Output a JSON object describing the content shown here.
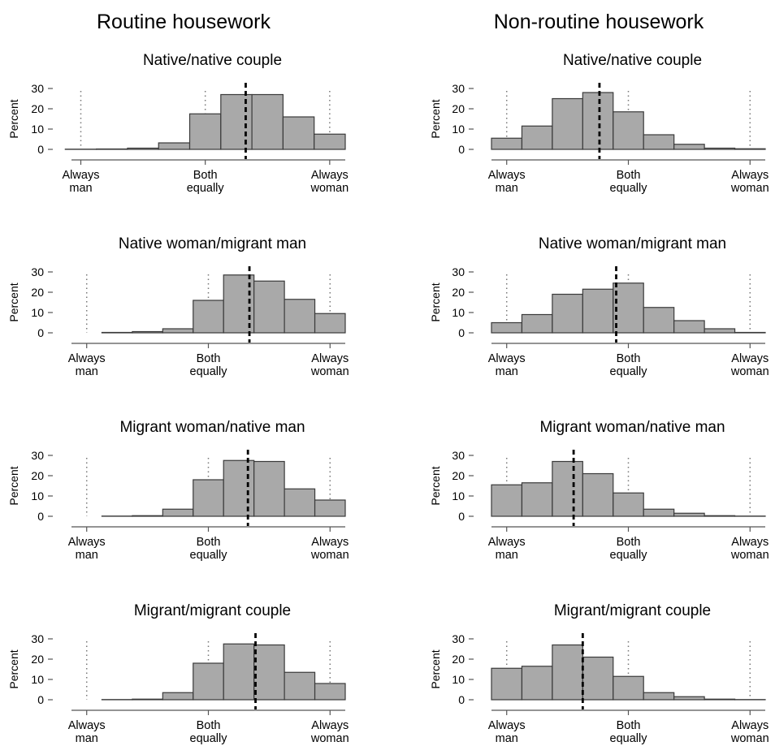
{
  "column_titles": [
    "Routine housework",
    "Non-routine housework"
  ],
  "y_tick_labels": [
    "0",
    "10",
    "20",
    "30"
  ],
  "colors": {
    "bar_fill": "#a9a9a9",
    "bar_edge": "#3a3a3a",
    "mean_line": "#000000",
    "reference_line": "#777777"
  },
  "chart_data": [
    {
      "type": "bar",
      "group": "Routine housework",
      "title": "Native/native couple",
      "ylabel": "Percent",
      "ylim": [
        0,
        30
      ],
      "yticks": [
        0,
        10,
        20,
        30
      ],
      "x_tick_labels": [
        [
          "Always",
          "man"
        ],
        [
          "Both",
          "equally"
        ],
        [
          "Always",
          "woman"
        ]
      ],
      "x_ticks": [
        0,
        4,
        8
      ],
      "xlim": [
        -0.3,
        8.5
      ],
      "bins": [
        [
          -0.5,
          0.5
        ],
        [
          0.5,
          1.5
        ],
        [
          1.5,
          2.5
        ],
        [
          2.5,
          3.5
        ],
        [
          3.5,
          4.5
        ],
        [
          4.5,
          5.5
        ],
        [
          5.5,
          6.5
        ],
        [
          6.5,
          7.5
        ],
        [
          7.5,
          8.5
        ]
      ],
      "values": [
        0.1,
        0.2,
        0.6,
        3.2,
        17.5,
        27,
        27,
        16,
        7.5
      ],
      "mean": 5.3
    },
    {
      "type": "bar",
      "group": "Non-routine housework",
      "title": "Native/native couple",
      "ylabel": "Percent",
      "ylim": [
        0,
        30
      ],
      "yticks": [
        0,
        10,
        20,
        30
      ],
      "x_tick_labels": [
        [
          "Always",
          "man"
        ],
        [
          "Both",
          "equally"
        ],
        [
          "Always",
          "woman"
        ]
      ],
      "x_ticks": [
        0,
        4,
        8
      ],
      "xlim": [
        -0.5,
        8.5
      ],
      "bins": [
        [
          -0.5,
          0.5
        ],
        [
          0.5,
          1.5
        ],
        [
          1.5,
          2.5
        ],
        [
          2.5,
          3.5
        ],
        [
          3.5,
          4.5
        ],
        [
          4.5,
          5.5
        ],
        [
          5.5,
          6.5
        ],
        [
          6.5,
          7.5
        ],
        [
          7.5,
          8.5
        ]
      ],
      "values": [
        5.5,
        11.5,
        25,
        28,
        18.5,
        7.2,
        2.5,
        0.6,
        0.3
      ],
      "mean": 3.05
    },
    {
      "type": "bar",
      "group": "Routine housework",
      "title": "Native woman/migrant man",
      "ylabel": "Percent",
      "ylim": [
        0,
        30
      ],
      "yticks": [
        0,
        10,
        20,
        30
      ],
      "x_tick_labels": [
        [
          "Always",
          "man"
        ],
        [
          "Both",
          "equally"
        ],
        [
          "Always",
          "woman"
        ]
      ],
      "x_ticks": [
        0,
        4,
        8
      ],
      "xlim": [
        -0.5,
        8.5
      ],
      "bins": [
        [
          0.5,
          1.5
        ],
        [
          1.5,
          2.5
        ],
        [
          2.5,
          3.5
        ],
        [
          3.5,
          4.5
        ],
        [
          4.5,
          5.5
        ],
        [
          5.5,
          6.5
        ],
        [
          6.5,
          7.5
        ],
        [
          7.5,
          8.5
        ]
      ],
      "values": [
        0.2,
        0.6,
        2.0,
        16,
        28.5,
        25.5,
        16.5,
        9.5
      ],
      "mean": 5.35
    },
    {
      "type": "bar",
      "group": "Non-routine housework",
      "title": "Native woman/migrant man",
      "ylabel": "Percent",
      "ylim": [
        0,
        30
      ],
      "yticks": [
        0,
        10,
        20,
        30
      ],
      "x_tick_labels": [
        [
          "Always",
          "man"
        ],
        [
          "Both",
          "equally"
        ],
        [
          "Always",
          "woman"
        ]
      ],
      "x_ticks": [
        0,
        4,
        8
      ],
      "xlim": [
        -0.5,
        8.5
      ],
      "bins": [
        [
          -0.5,
          0.5
        ],
        [
          0.5,
          1.5
        ],
        [
          1.5,
          2.5
        ],
        [
          2.5,
          3.5
        ],
        [
          3.5,
          4.5
        ],
        [
          4.5,
          5.5
        ],
        [
          5.5,
          6.5
        ],
        [
          6.5,
          7.5
        ],
        [
          7.5,
          8.5
        ]
      ],
      "values": [
        5,
        9,
        19,
        21.5,
        24.5,
        12.5,
        6,
        2,
        0.2
      ],
      "mean": 3.6
    },
    {
      "type": "bar",
      "group": "Routine housework",
      "title": "Migrant woman/native man",
      "ylabel": "Percent",
      "ylim": [
        0,
        30
      ],
      "yticks": [
        0,
        10,
        20,
        30
      ],
      "x_tick_labels": [
        [
          "Always",
          "man"
        ],
        [
          "Both",
          "equally"
        ],
        [
          "Always",
          "woman"
        ]
      ],
      "x_ticks": [
        0,
        4,
        8
      ],
      "xlim": [
        -0.5,
        8.5
      ],
      "bins": [
        [
          0.5,
          1.5
        ],
        [
          1.5,
          2.5
        ],
        [
          2.5,
          3.5
        ],
        [
          3.5,
          4.5
        ],
        [
          4.5,
          5.5
        ],
        [
          5.5,
          6.5
        ],
        [
          6.5,
          7.5
        ],
        [
          7.5,
          8.5
        ]
      ],
      "values": [
        0.1,
        0.3,
        3.5,
        18,
        27.5,
        27,
        13.5,
        8
      ],
      "mean": 5.3
    },
    {
      "type": "bar",
      "group": "Non-routine housework",
      "title": "Migrant woman/native man",
      "ylabel": "Percent",
      "ylim": [
        0,
        30
      ],
      "yticks": [
        0,
        10,
        20,
        30
      ],
      "x_tick_labels": [
        [
          "Always",
          "man"
        ],
        [
          "Both",
          "equally"
        ],
        [
          "Always",
          "woman"
        ]
      ],
      "x_ticks": [
        0,
        4,
        8
      ],
      "xlim": [
        -0.5,
        8.5
      ],
      "bins": [
        [
          -0.5,
          0.5
        ],
        [
          0.5,
          1.5
        ],
        [
          1.5,
          2.5
        ],
        [
          2.5,
          3.5
        ],
        [
          3.5,
          4.5
        ],
        [
          4.5,
          5.5
        ],
        [
          5.5,
          6.5
        ],
        [
          6.5,
          7.5
        ],
        [
          7.5,
          8.5
        ]
      ],
      "values": [
        15.5,
        16.5,
        27,
        21,
        11.5,
        3.5,
        1.5,
        0.3,
        0.1
      ],
      "mean": 2.2
    },
    {
      "type": "bar",
      "group": "Routine housework",
      "title": "Migrant/migrant couple",
      "ylabel": "Percent",
      "ylim": [
        0,
        30
      ],
      "yticks": [
        0,
        10,
        20,
        30
      ],
      "x_tick_labels": [
        [
          "Always",
          "man"
        ],
        [
          "Both",
          "equally"
        ],
        [
          "Always",
          "woman"
        ]
      ],
      "x_ticks": [
        0,
        4,
        8
      ],
      "xlim": [
        -0.5,
        8.5
      ],
      "bins": [
        [
          0.5,
          1.5
        ],
        [
          1.5,
          2.5
        ],
        [
          2.5,
          3.5
        ],
        [
          3.5,
          4.5
        ],
        [
          4.5,
          5.5
        ],
        [
          5.5,
          6.5
        ],
        [
          6.5,
          7.5
        ],
        [
          7.5,
          8.5
        ]
      ],
      "values": [
        0.1,
        0.3,
        3.5,
        18,
        27.5,
        27,
        13.5,
        8
      ],
      "mean": 5.55
    },
    {
      "type": "bar",
      "group": "Non-routine housework",
      "title": "Migrant/migrant couple",
      "ylabel": "Percent",
      "ylim": [
        0,
        30
      ],
      "yticks": [
        0,
        10,
        20,
        30
      ],
      "x_tick_labels": [
        [
          "Always",
          "man"
        ],
        [
          "Both",
          "equally"
        ],
        [
          "Always",
          "woman"
        ]
      ],
      "x_ticks": [
        0,
        4,
        8
      ],
      "xlim": [
        -0.5,
        8.5
      ],
      "bins": [
        [
          -0.5,
          0.5
        ],
        [
          0.5,
          1.5
        ],
        [
          1.5,
          2.5
        ],
        [
          2.5,
          3.5
        ],
        [
          3.5,
          4.5
        ],
        [
          4.5,
          5.5
        ],
        [
          5.5,
          6.5
        ],
        [
          6.5,
          7.5
        ],
        [
          7.5,
          8.5
        ]
      ],
      "values": [
        15.5,
        16.5,
        27,
        21,
        11.5,
        3.5,
        1.5,
        0.3,
        0.1
      ],
      "mean": 2.5
    }
  ]
}
